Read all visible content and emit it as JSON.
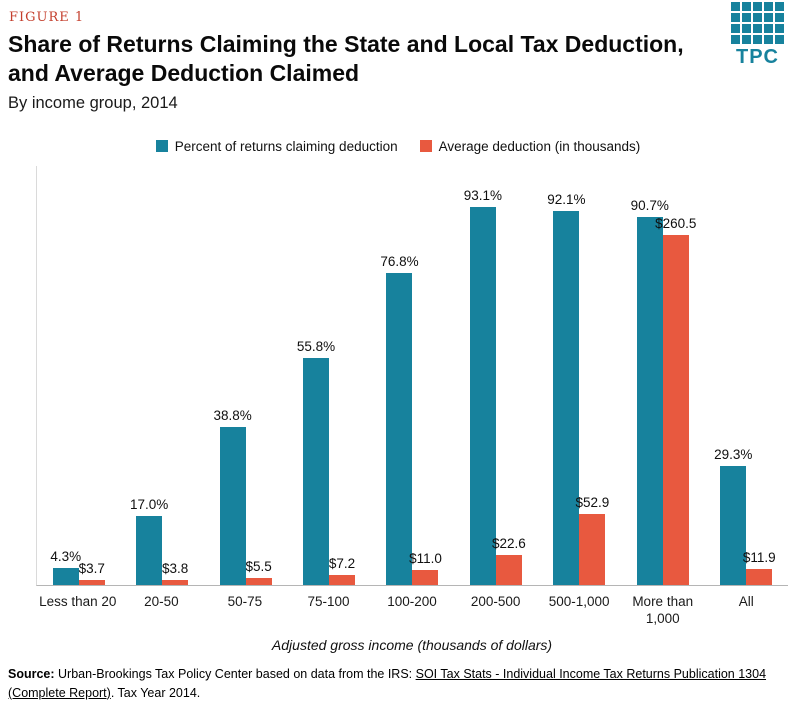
{
  "figure_label": "FIGURE 1",
  "title_line_1": "Share of Returns Claiming the State and Local Tax Deduction,",
  "title_line_2": "and Average Deduction Claimed",
  "subtitle": "By income group, 2014",
  "logo": {
    "text": "TPC"
  },
  "colors": {
    "teal": "#17829d",
    "orange": "#e8593f",
    "figure_label_red": "#c43f2d"
  },
  "chart_data": {
    "type": "bar",
    "title": "Share of Returns Claiming the State and Local Tax Deduction, and Average Deduction Claimed",
    "subtitle": "By income group, 2014",
    "categories": [
      "Less than 20",
      "20-50",
      "50-75",
      "75-100",
      "100-200",
      "200-500",
      "500-1,000",
      "More than 1,000",
      "All"
    ],
    "xlabel": "Adjusted gross income (thousands of dollars)",
    "ylabel": "",
    "grid": false,
    "legend_position": "top",
    "series": [
      {
        "name": "Percent of returns claiming deduction",
        "values": [
          4.3,
          17.0,
          38.8,
          55.8,
          76.8,
          93.1,
          92.1,
          90.7,
          29.3
        ],
        "labels": [
          "4.3%",
          "17.0%",
          "38.8%",
          "55.8%",
          "76.8%",
          "93.1%",
          "92.1%",
          "90.7%",
          "29.3%"
        ]
      },
      {
        "name": "Average deduction (in thousands)",
        "values": [
          3.7,
          3.8,
          5.5,
          7.2,
          11.0,
          22.6,
          52.9,
          260.5,
          11.9
        ],
        "labels": [
          "$3.7",
          "$3.8",
          "$5.5",
          "$7.2",
          "$11.0",
          "$22.6",
          "$52.9",
          "$260.5",
          "$11.9"
        ]
      }
    ]
  },
  "source": {
    "prefix": "Source:",
    "text_before_link": " Urban-Brookings Tax Policy Center based on data from the IRS: ",
    "link": "SOI Tax Stats - Individual Income Tax Returns Publication 1304 (Complete Report)",
    "text_after_link": ". Tax Year 2014."
  }
}
